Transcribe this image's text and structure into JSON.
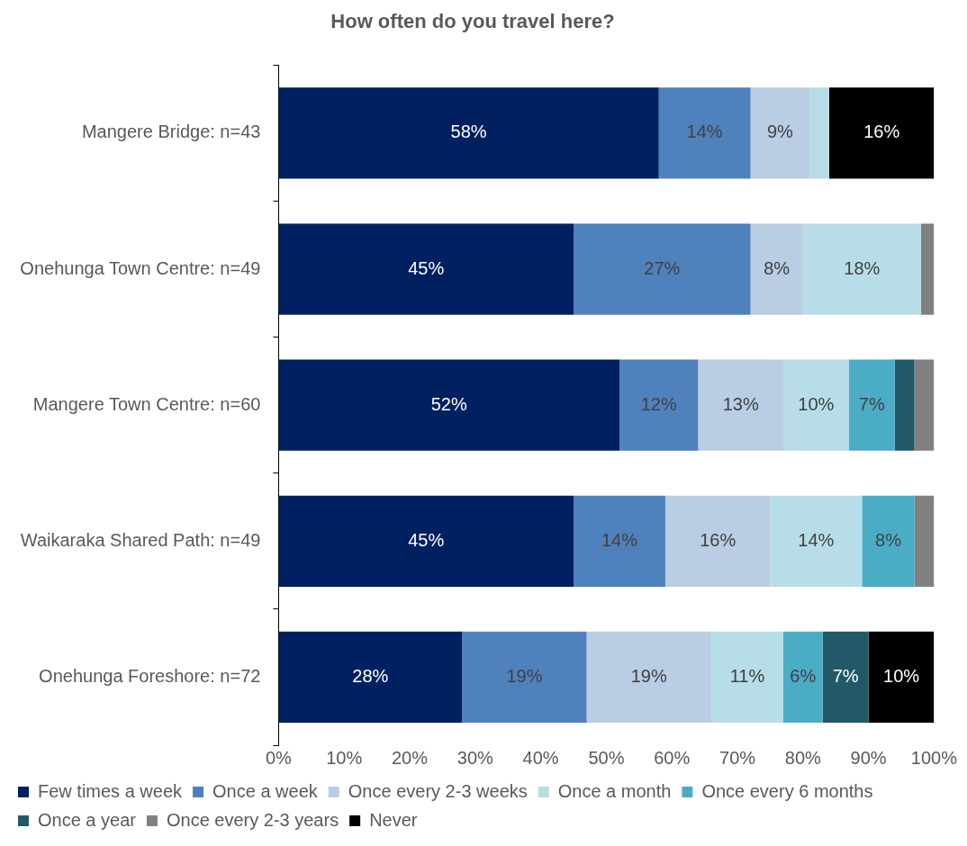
{
  "chart_data": {
    "type": "bar",
    "title": "How often do you travel here?",
    "orientation": "horizontal",
    "stacked": true,
    "legend": "bottom",
    "categories": [
      "Mangere Bridge: n=43",
      "Onehunga Town Centre: n=49",
      "Mangere Town Centre: n=60",
      "Waikaraka Shared Path: n=49",
      "Onehunga Foreshore: n=72"
    ],
    "xlim": [
      0,
      100
    ],
    "xticks": [
      {
        "value": 0,
        "label": "0%"
      },
      {
        "value": 10,
        "label": "10%"
      },
      {
        "value": 20,
        "label": "20%"
      },
      {
        "value": 30,
        "label": "30%"
      },
      {
        "value": 40,
        "label": "40%"
      },
      {
        "value": 50,
        "label": "50%"
      },
      {
        "value": 60,
        "label": "60%"
      },
      {
        "value": 70,
        "label": "70%"
      },
      {
        "value": 80,
        "label": "80%"
      },
      {
        "value": 90,
        "label": "90%"
      },
      {
        "value": 100,
        "label": "100%"
      }
    ],
    "series": [
      {
        "name": "Few times a week",
        "color": "#002060",
        "values": [
          58,
          45,
          52,
          45,
          28
        ],
        "value_labels": [
          "58%",
          "45%",
          "52%",
          "45%",
          "28%"
        ]
      },
      {
        "name": "Once a week",
        "color": "#4f81bd",
        "values": [
          14,
          27,
          12,
          14,
          19
        ],
        "value_labels": [
          "14%",
          "27%",
          "12%",
          "14%",
          "19%"
        ]
      },
      {
        "name": "Once every 2-3 weeks",
        "color": "#b9cde5",
        "values": [
          9,
          8,
          13,
          16,
          19
        ],
        "value_labels": [
          "9%",
          "8%",
          "13%",
          "16%",
          "19%"
        ]
      },
      {
        "name": "Once a month",
        "color": "#b7dee8",
        "values": [
          3,
          18,
          10,
          14,
          11
        ],
        "value_labels": [
          null,
          "18%",
          "10%",
          "14%",
          "11%"
        ]
      },
      {
        "name": "Once every 6 months",
        "color": "#4bacc6",
        "values": [
          0,
          0,
          7,
          8,
          6
        ],
        "value_labels": [
          null,
          null,
          "7%",
          "8%",
          "6%"
        ]
      },
      {
        "name": "Once a year",
        "color": "#215968",
        "values": [
          0,
          0,
          3,
          0,
          7
        ],
        "value_labels": [
          null,
          null,
          null,
          null,
          "7%"
        ]
      },
      {
        "name": "Once every 2-3 years",
        "color": "#808080",
        "values": [
          0,
          2,
          3,
          3,
          0
        ],
        "value_labels": [
          null,
          null,
          null,
          null,
          null
        ]
      },
      {
        "name": "Never",
        "color": "#000000",
        "values": [
          16,
          0,
          0,
          0,
          10
        ],
        "value_labels": [
          "16%",
          null,
          null,
          null,
          "10%"
        ]
      }
    ]
  }
}
